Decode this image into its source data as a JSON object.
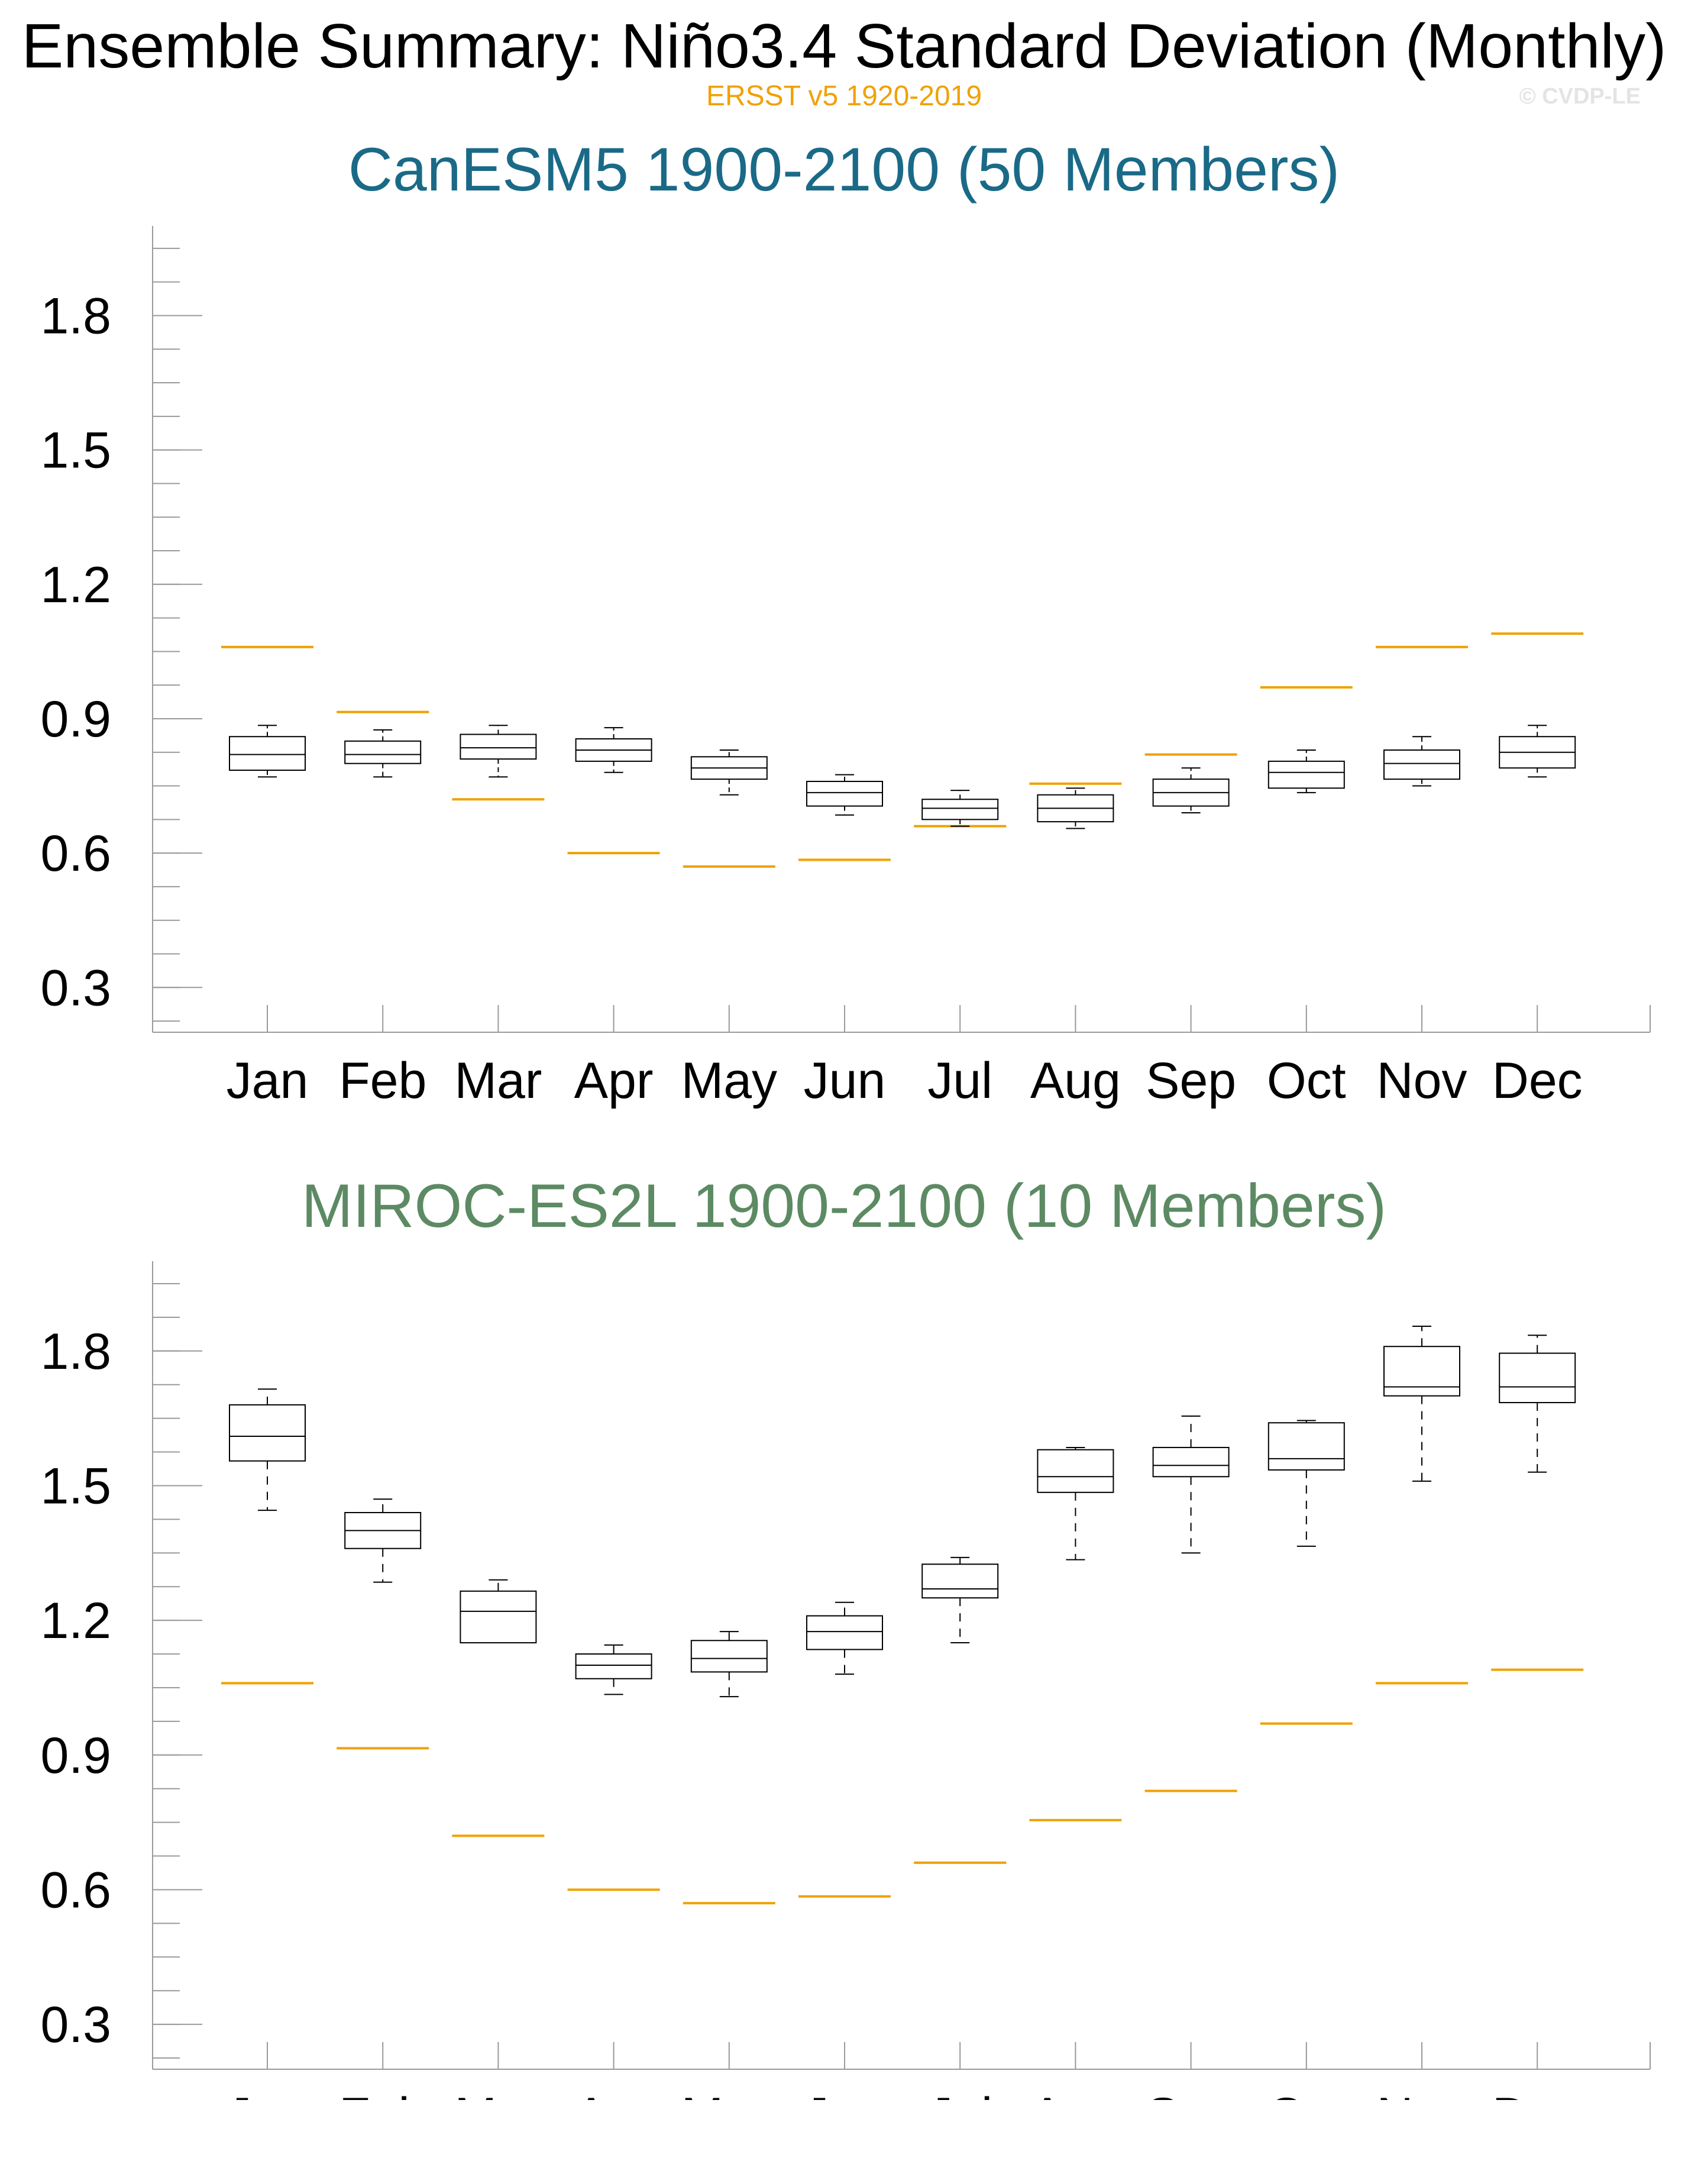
{
  "figure": {
    "title": "Ensemble Summary: Niño3.4 Standard Deviation (Monthly)",
    "subtitle": "ERSST v5 1920-2019",
    "credit": "© CVDP-LE",
    "colors": {
      "observations": "#f0a100",
      "panel1_title": "#1a6a87",
      "panel2_title": "#5c8a63",
      "box": "#000000"
    }
  },
  "chart_data": [
    {
      "type": "box",
      "title": "CanESM5 1900-2100 (50 Members)",
      "categories": [
        "Jan",
        "Feb",
        "Mar",
        "Apr",
        "May",
        "Jun",
        "Jul",
        "Aug",
        "Sep",
        "Oct",
        "Nov",
        "Dec"
      ],
      "yticks": [
        "0.3",
        "0.6",
        "0.9",
        "1.2",
        "1.5",
        "1.8"
      ],
      "ylim": [
        0.2,
        2.0
      ],
      "boxes": [
        {
          "min": 0.77,
          "q1": 0.785,
          "median": 0.82,
          "q3": 0.86,
          "max": 0.885
        },
        {
          "min": 0.77,
          "q1": 0.8,
          "median": 0.82,
          "q3": 0.85,
          "max": 0.875
        },
        {
          "min": 0.77,
          "q1": 0.81,
          "median": 0.835,
          "q3": 0.865,
          "max": 0.885
        },
        {
          "min": 0.78,
          "q1": 0.805,
          "median": 0.83,
          "q3": 0.855,
          "max": 0.88
        },
        {
          "min": 0.73,
          "q1": 0.765,
          "median": 0.79,
          "q3": 0.815,
          "max": 0.83
        },
        {
          "min": 0.685,
          "q1": 0.705,
          "median": 0.735,
          "q3": 0.76,
          "max": 0.775
        },
        {
          "min": 0.66,
          "q1": 0.675,
          "median": 0.7,
          "q3": 0.72,
          "max": 0.74
        },
        {
          "min": 0.655,
          "q1": 0.67,
          "median": 0.7,
          "q3": 0.73,
          "max": 0.745
        },
        {
          "min": 0.69,
          "q1": 0.705,
          "median": 0.735,
          "q3": 0.765,
          "max": 0.79
        },
        {
          "min": 0.735,
          "q1": 0.745,
          "median": 0.78,
          "q3": 0.805,
          "max": 0.83
        },
        {
          "min": 0.75,
          "q1": 0.765,
          "median": 0.8,
          "q3": 0.83,
          "max": 0.86
        },
        {
          "min": 0.77,
          "q1": 0.79,
          "median": 0.825,
          "q3": 0.86,
          "max": 0.885
        }
      ],
      "observations": [
        1.06,
        0.915,
        0.72,
        0.6,
        0.57,
        0.585,
        0.66,
        0.755,
        0.82,
        0.97,
        1.06,
        1.09
      ]
    },
    {
      "type": "box",
      "title": "MIROC-ES2L 1900-2100 (10 Members)",
      "categories": [
        "Jan",
        "Feb",
        "Mar",
        "Apr",
        "May",
        "Jun",
        "Jul",
        "Aug",
        "Sep",
        "Oct",
        "Nov",
        "Dec"
      ],
      "yticks": [
        "0.3",
        "0.6",
        "0.9",
        "1.2",
        "1.5",
        "1.8"
      ],
      "ylim": [
        0.2,
        2.0
      ],
      "boxes": [
        {
          "min": 1.445,
          "q1": 1.555,
          "median": 1.61,
          "q3": 1.68,
          "max": 1.715
        },
        {
          "min": 1.285,
          "q1": 1.36,
          "median": 1.4,
          "q3": 1.44,
          "max": 1.47
        },
        {
          "min": 1.15,
          "q1": 1.15,
          "median": 1.22,
          "q3": 1.265,
          "max": 1.29
        },
        {
          "min": 1.035,
          "q1": 1.07,
          "median": 1.1,
          "q3": 1.125,
          "max": 1.145
        },
        {
          "min": 1.03,
          "q1": 1.085,
          "median": 1.115,
          "q3": 1.155,
          "max": 1.175
        },
        {
          "min": 1.08,
          "q1": 1.135,
          "median": 1.175,
          "q3": 1.21,
          "max": 1.24
        },
        {
          "min": 1.15,
          "q1": 1.25,
          "median": 1.27,
          "q3": 1.325,
          "max": 1.34
        },
        {
          "min": 1.335,
          "q1": 1.485,
          "median": 1.52,
          "q3": 1.58,
          "max": 1.585
        },
        {
          "min": 1.35,
          "q1": 1.52,
          "median": 1.545,
          "q3": 1.585,
          "max": 1.655
        },
        {
          "min": 1.365,
          "q1": 1.535,
          "median": 1.56,
          "q3": 1.64,
          "max": 1.645
        },
        {
          "min": 1.51,
          "q1": 1.7,
          "median": 1.72,
          "q3": 1.81,
          "max": 1.855
        },
        {
          "min": 1.53,
          "q1": 1.685,
          "median": 1.72,
          "q3": 1.795,
          "max": 1.835
        }
      ],
      "observations": [
        1.06,
        0.915,
        0.72,
        0.6,
        0.57,
        0.585,
        0.66,
        0.755,
        0.82,
        0.97,
        1.06,
        1.09
      ]
    }
  ]
}
